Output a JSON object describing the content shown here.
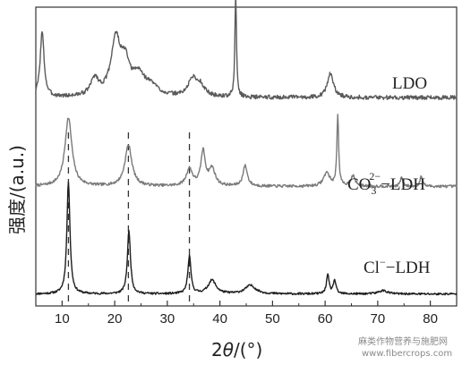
{
  "chart_data": {
    "type": "line",
    "xlabel_prefix": "2",
    "xlabel_var": "θ",
    "xlabel_unit": "/(°)",
    "ylabel": "强度/(a.u.)",
    "xlim": [
      5,
      85
    ],
    "x_ticks": [
      10,
      20,
      30,
      40,
      50,
      60,
      70,
      80
    ],
    "grid": false,
    "dashed_reference_x": [
      11.2,
      22.6,
      34.2
    ],
    "series": [
      {
        "name": "LDO",
        "label_main": "LDO",
        "color": "#5a5a5a",
        "baseline": 0.52,
        "noise": 0.012,
        "seed": 3,
        "peaks": [
          [
            6.2,
            0.38,
            0.45
          ],
          [
            16.2,
            0.1,
            0.9
          ],
          [
            20.2,
            0.33,
            1.1
          ],
          [
            22.0,
            0.16,
            0.9
          ],
          [
            24.5,
            0.12,
            1.5
          ],
          [
            27.0,
            0.05,
            1.5
          ],
          [
            34.8,
            0.1,
            1.0
          ],
          [
            36.3,
            0.06,
            1.0
          ],
          [
            43.0,
            0.6,
            0.18
          ],
          [
            61.0,
            0.14,
            0.7
          ]
        ]
      },
      {
        "name": "CO3²⁻-LDH",
        "label_main": "CO",
        "label_sub": "3",
        "label_sup": "2−",
        "label_suffix": "−LDH",
        "color": "#7a7a7a",
        "baseline": 0.0,
        "noise": 0.008,
        "seed": 7,
        "peaks": [
          [
            11.2,
            0.4,
            0.8
          ],
          [
            22.6,
            0.24,
            0.8
          ],
          [
            34.2,
            0.1,
            0.7
          ],
          [
            36.8,
            0.2,
            0.5
          ],
          [
            38.5,
            0.1,
            0.7
          ],
          [
            44.8,
            0.12,
            0.5
          ],
          [
            60.3,
            0.08,
            0.7
          ],
          [
            62.4,
            0.42,
            0.2
          ],
          [
            65.3,
            0.06,
            0.5
          ],
          [
            74.5,
            0.05,
            0.3
          ],
          [
            78.3,
            0.06,
            0.3
          ]
        ]
      },
      {
        "name": "Cl⁻-LDH",
        "label_main": "Cl",
        "label_sup": "−",
        "label_suffix": "−LDH",
        "color": "#1e1e1e",
        "baseline": -0.63,
        "noise": 0.006,
        "seed": 11,
        "peaks": [
          [
            11.2,
            0.66,
            0.35
          ],
          [
            22.7,
            0.37,
            0.35
          ],
          [
            34.2,
            0.22,
            0.35
          ],
          [
            38.5,
            0.08,
            0.9
          ],
          [
            45.8,
            0.05,
            1.2
          ],
          [
            60.5,
            0.11,
            0.3
          ],
          [
            61.8,
            0.08,
            0.3
          ],
          [
            71.0,
            0.02,
            1.0
          ]
        ]
      }
    ]
  },
  "watermark": {
    "line1": "麻类作物营养与施肥网",
    "line2": "www.fibercrops.com"
  }
}
